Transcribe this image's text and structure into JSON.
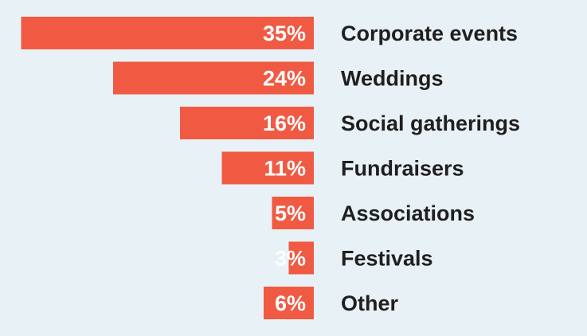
{
  "chart_data": {
    "type": "bar",
    "orientation": "horizontal",
    "categories": [
      "Corporate events",
      "Weddings",
      "Social gatherings",
      "Fundraisers",
      "Associations",
      "Festivals",
      "Other"
    ],
    "values": [
      35,
      24,
      16,
      11,
      5,
      3,
      6
    ],
    "value_labels": [
      "35%",
      "24%",
      "16%",
      "11%",
      "5%",
      "3%",
      "6%"
    ],
    "unit": "%",
    "title": "",
    "xlabel": "",
    "ylabel": "",
    "grid": false,
    "legend": "none",
    "bar_color": "#f05a43",
    "background_color": "#e8f1f5",
    "label_color": "#1f1f1f",
    "value_label_color": "#ffffff"
  }
}
